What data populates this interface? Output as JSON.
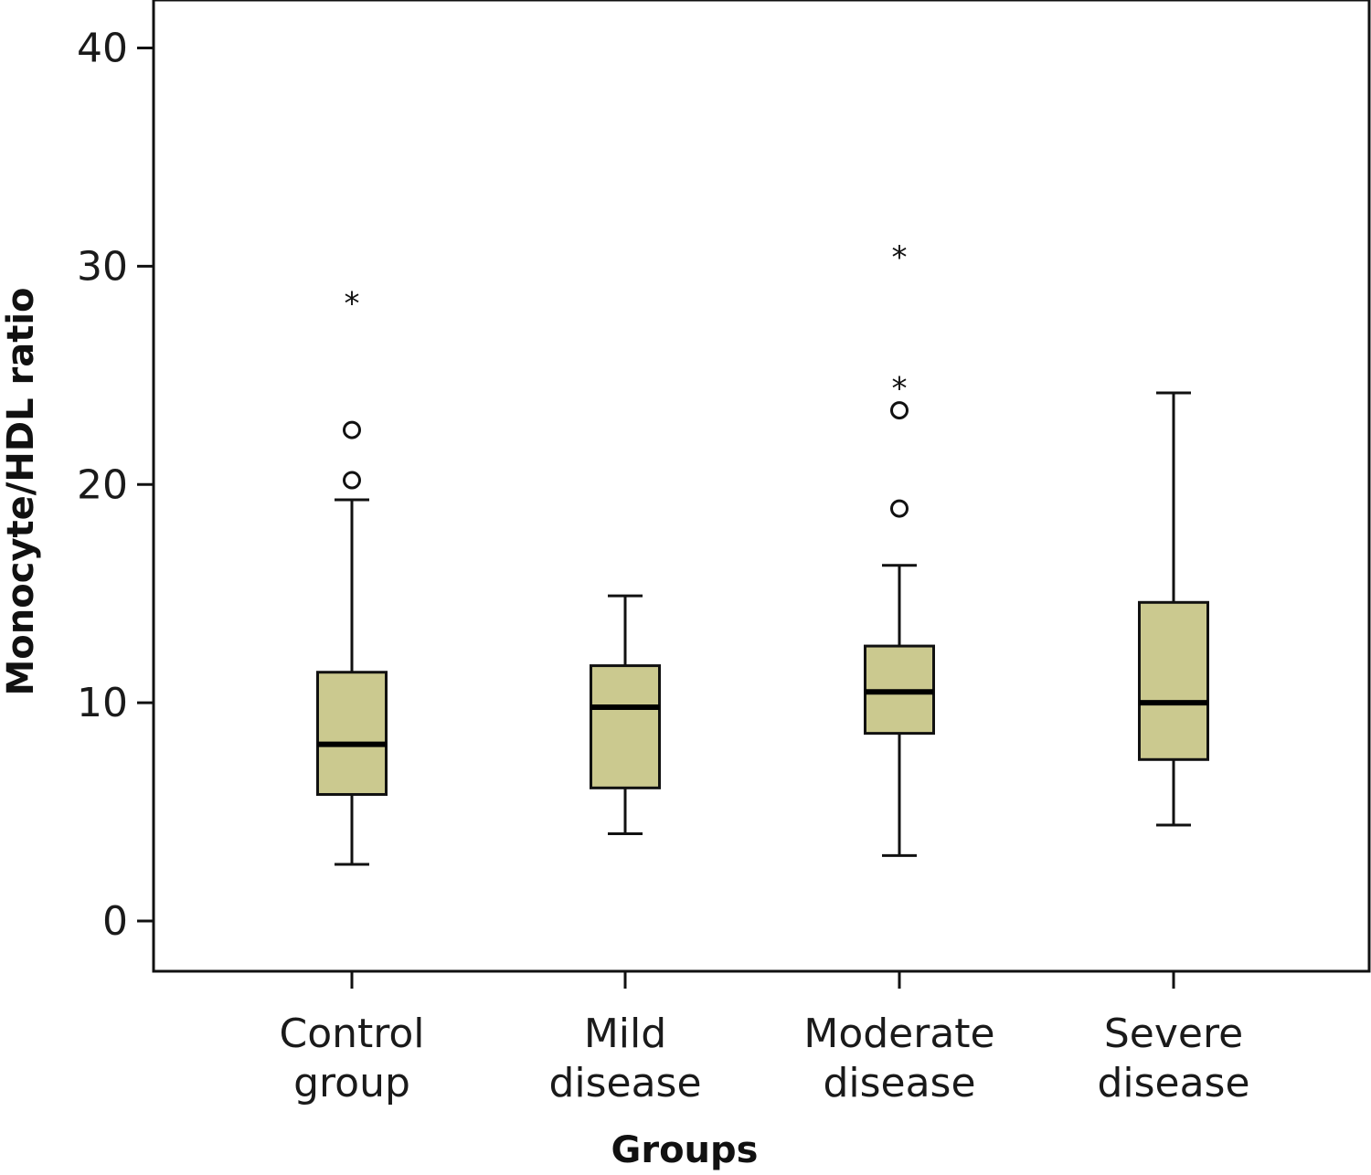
{
  "chart_data": {
    "type": "boxplot",
    "title": "",
    "xlabel": "Groups",
    "ylabel": "Monocyte/HDL ratio",
    "ylim": [
      -2.3,
      42.2
    ],
    "yticks": [
      0,
      10,
      20,
      30,
      40
    ],
    "grid": false,
    "box_color": "#cbc98f",
    "categories": [
      [
        "Control",
        "group"
      ],
      [
        "Mild",
        "disease"
      ],
      [
        "Moderate",
        "disease"
      ],
      [
        "Severe",
        "disease"
      ]
    ],
    "boxes": [
      {
        "whisker_low": 2.6,
        "q1": 5.8,
        "median": 8.1,
        "q3": 11.4,
        "whisker_high": 19.3,
        "outliers": [
          22.5,
          20.2
        ],
        "extremes": [
          28.5
        ]
      },
      {
        "whisker_low": 4.0,
        "q1": 6.1,
        "median": 9.8,
        "q3": 11.7,
        "whisker_high": 14.9,
        "outliers": [],
        "extremes": []
      },
      {
        "whisker_low": 3.0,
        "q1": 8.6,
        "median": 10.5,
        "q3": 12.6,
        "whisker_high": 16.3,
        "outliers": [
          23.4,
          18.9
        ],
        "extremes": [
          30.6,
          24.6
        ]
      },
      {
        "whisker_low": 4.4,
        "q1": 7.4,
        "median": 10.0,
        "q3": 14.6,
        "whisker_high": 24.2,
        "outliers": [],
        "extremes": []
      }
    ]
  }
}
